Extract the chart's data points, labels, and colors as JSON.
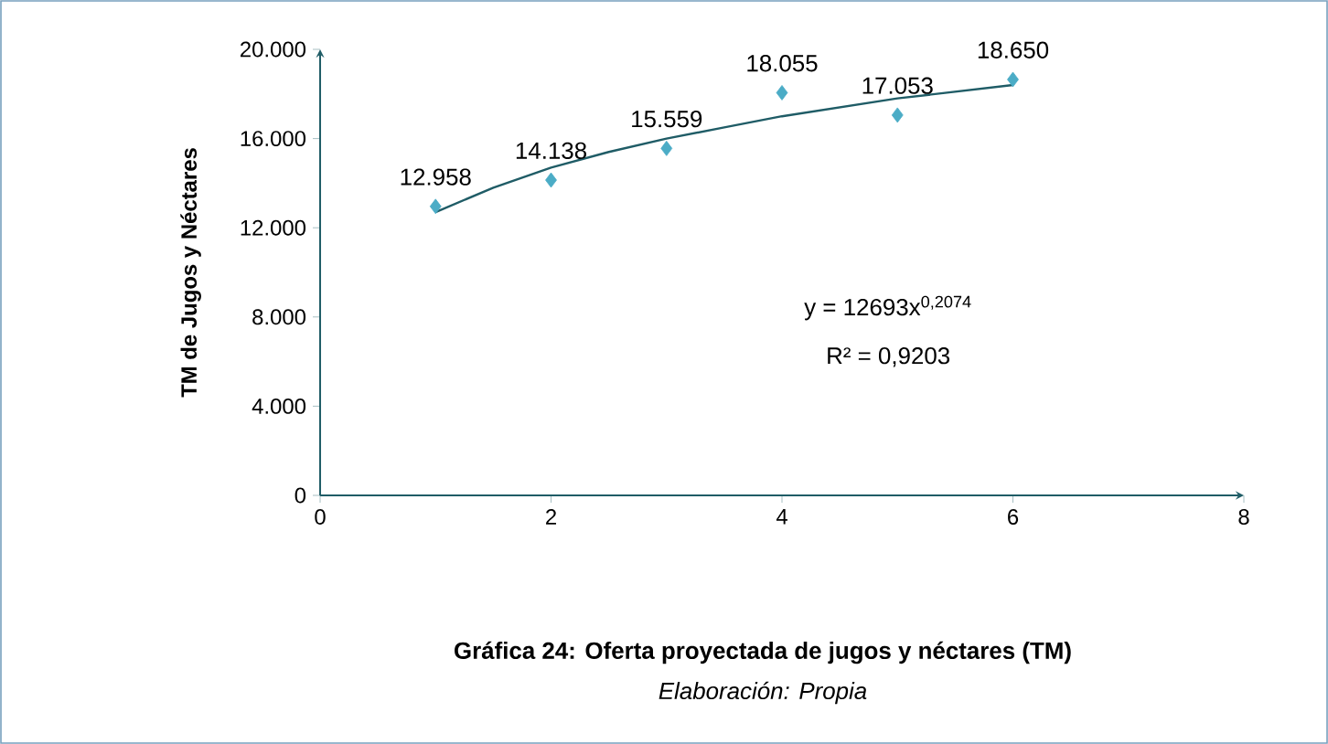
{
  "chart_data": {
    "type": "scatter",
    "title": "Gráfica 24: Oferta proyectada de jugos y néctares (TM)",
    "subtitle": "Elaboración: Propia",
    "ylabel": "TM de Jugos y Néctares",
    "xlim": [
      0,
      8
    ],
    "ylim": [
      0,
      20000
    ],
    "xticks": [
      0,
      2,
      4,
      6,
      8
    ],
    "yticks": [
      0,
      {
        "value": 4000,
        "label": "4.000"
      },
      {
        "value": 8000,
        "label": "8.000"
      },
      {
        "value": 12000,
        "label": "12.000"
      },
      {
        "value": 16000,
        "label": "16.000"
      },
      {
        "value": 20000,
        "label": "20.000"
      }
    ],
    "marker": "diamond",
    "grid": false,
    "series": [
      {
        "color": "#4bacc6",
        "x": [
          1,
          2,
          3,
          4,
          5,
          6
        ],
        "values": [
          12958,
          14138,
          15559,
          18055,
          17053,
          18650
        ],
        "value_labels": [
          "12.958",
          "14.138",
          "15.559",
          "18.055",
          "17.053",
          "18.650"
        ]
      },
      {
        "type": "line",
        "color": "#1f5c66",
        "line_style": "solid",
        "marker": "none",
        "x": [
          1,
          1.5,
          2,
          2.5,
          3,
          3.5,
          4,
          4.5,
          5,
          5.5,
          6
        ],
        "values": [
          12700,
          13800,
          14700,
          15400,
          16000,
          16500,
          17000,
          17400,
          17800,
          18100,
          18400
        ]
      }
    ],
    "annotations": [
      "y = 12693x$^{0,2074}$",
      "R² = 0,9203"
    ]
  }
}
